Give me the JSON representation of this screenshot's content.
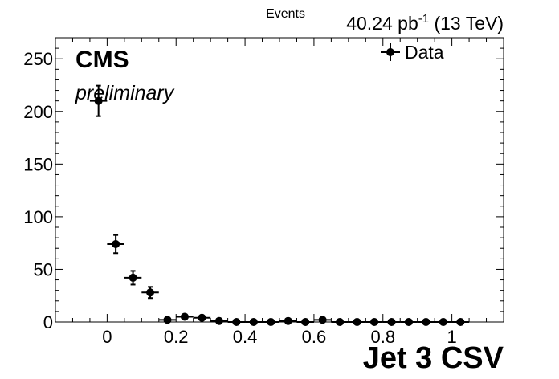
{
  "chart_data": {
    "type": "scatter",
    "xlabel": "Jet 3 CSV",
    "ylabel": "Events",
    "xlim": [
      -0.15,
      1.15
    ],
    "ylim": [
      0,
      270
    ],
    "x_ticks": [
      0,
      0.2,
      0.4,
      0.6,
      0.8,
      1
    ],
    "x_tick_labels": [
      "0",
      "0.2",
      "0.4",
      "0.6",
      "0.8",
      "1"
    ],
    "y_ticks": [
      0,
      50,
      100,
      150,
      200,
      250
    ],
    "y_tick_labels": [
      "0",
      "50",
      "100",
      "150",
      "200",
      "250"
    ],
    "grid": false,
    "legend": {
      "placement": "top-right",
      "entries": [
        "Data"
      ]
    },
    "series": [
      {
        "name": "Data",
        "bin_half_width": 0.025,
        "x": [
          -0.025,
          0.025,
          0.075,
          0.125,
          0.175,
          0.225,
          0.275,
          0.325,
          0.375,
          0.425,
          0.475,
          0.525,
          0.575,
          0.625,
          0.675,
          0.725,
          0.775,
          0.825,
          0.875,
          0.925,
          0.975,
          1.025
        ],
        "y": [
          210,
          74,
          42,
          28,
          2,
          5,
          4,
          1,
          0,
          0,
          0,
          1,
          0,
          2,
          0,
          0,
          0,
          0,
          0,
          0,
          0,
          0
        ],
        "y_err": [
          14.5,
          8.6,
          6.5,
          5.3,
          1.4,
          2.2,
          2.0,
          1.0,
          0,
          0,
          0,
          1.0,
          0,
          1.4,
          0,
          0,
          0,
          0,
          0,
          0,
          0,
          0
        ]
      }
    ]
  },
  "labels": {
    "cms": "CMS",
    "preliminary": "preliminary",
    "lumi_value": "40.24 pb",
    "lumi_exp": "-1",
    "lumi_energy": " (13 TeV)"
  }
}
